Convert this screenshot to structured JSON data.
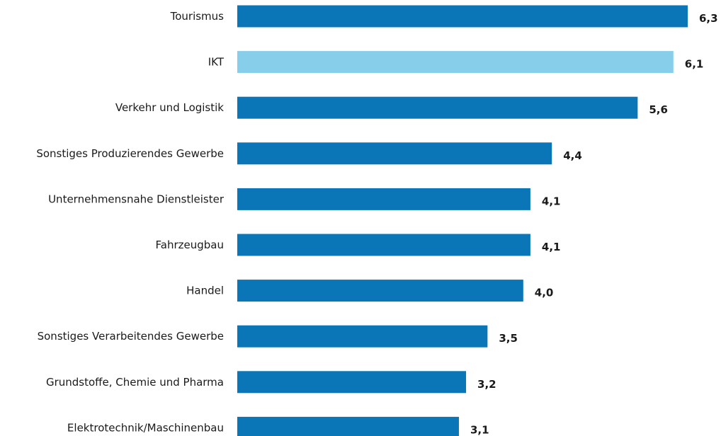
{
  "chart_data": {
    "type": "bar",
    "orientation": "horizontal",
    "title": "",
    "xlabel": "",
    "ylabel": "",
    "categories": [
      "Tourismus",
      "IKT",
      "Verkehr und Logistik",
      "Sonstiges Produzierendes Gewerbe",
      "Unternehmensnahe Dienstleister",
      "Fahrzeugbau",
      "Handel",
      "Sonstiges Verarbeitendes Gewerbe",
      "Grundstoffe, Chemie und Pharma",
      "Elektrotechnik/Maschinenbau"
    ],
    "values": [
      6.3,
      6.1,
      5.6,
      4.4,
      4.1,
      4.1,
      4.0,
      3.5,
      3.2,
      3.1
    ],
    "value_labels": [
      "6,3",
      "6,1",
      "5,6",
      "4,4",
      "4,1",
      "4,1",
      "4,0",
      "3,5",
      "3,2",
      "3,1"
    ],
    "xlim": [
      0,
      6.3
    ],
    "grid": false,
    "legend": "none",
    "colors": {
      "default": "#0a75b7",
      "highlight": "#87ceeb"
    },
    "highlight_category": "IKT"
  }
}
